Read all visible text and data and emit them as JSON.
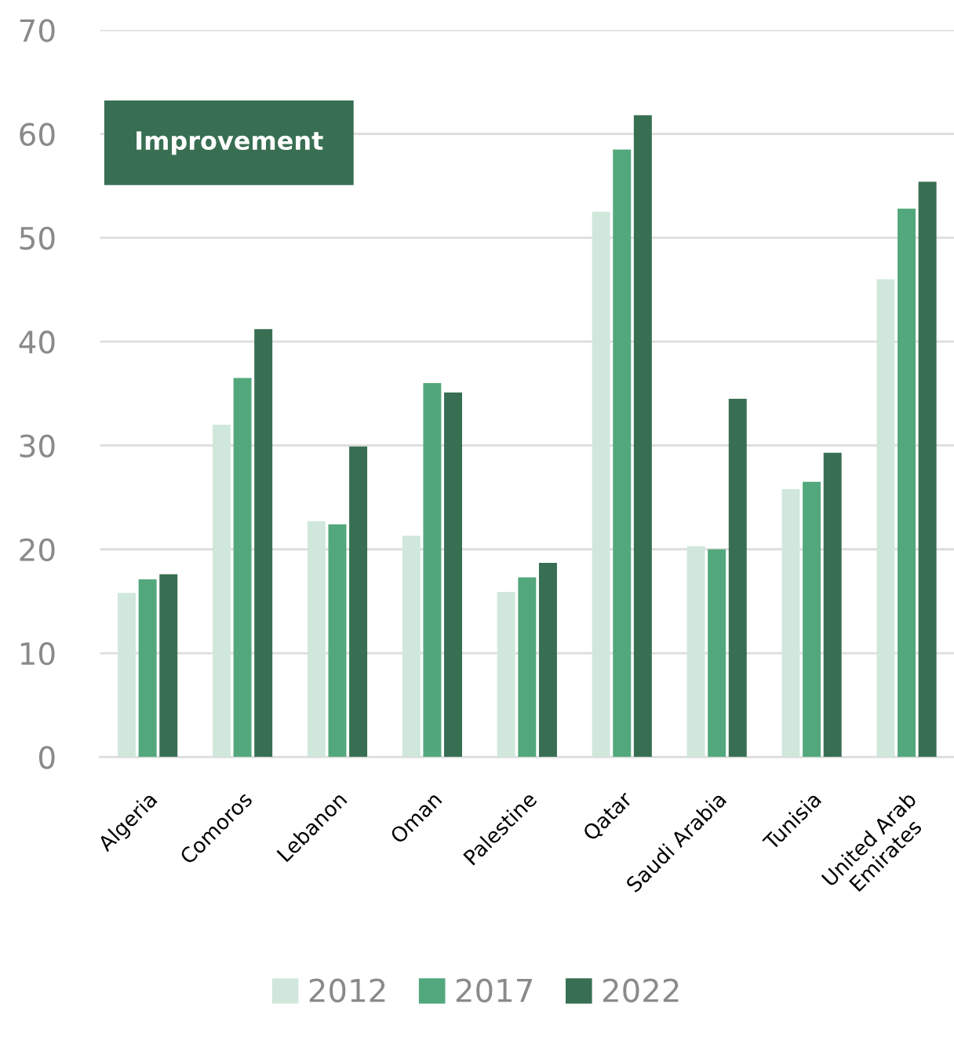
{
  "chart_data": {
    "type": "bar",
    "categories": [
      "Algeria",
      "Comoros",
      "Lebanon",
      "Oman",
      "Palestine",
      "Qatar",
      "Saudi Arabia",
      "Tunisia",
      "United Arab\nEmirates"
    ],
    "series": [
      {
        "name": "2012",
        "color": "#d0e8dc",
        "values": [
          15.8,
          32.0,
          22.7,
          21.3,
          15.9,
          52.5,
          20.3,
          25.8,
          46.0
        ]
      },
      {
        "name": "2017",
        "color": "#52a87c",
        "values": [
          17.1,
          36.5,
          22.4,
          36.0,
          17.3,
          58.5,
          20.0,
          26.5,
          52.8
        ]
      },
      {
        "name": "2022",
        "color": "#386f53",
        "values": [
          17.6,
          41.2,
          29.9,
          35.1,
          18.7,
          61.8,
          34.5,
          29.3,
          55.4
        ]
      }
    ],
    "ylim": [
      0,
      70
    ],
    "yticks": [
      0,
      10,
      20,
      30,
      40,
      50,
      60,
      70
    ],
    "grid": "y",
    "legend": "bottom",
    "annotations": [
      "Improvement"
    ]
  }
}
